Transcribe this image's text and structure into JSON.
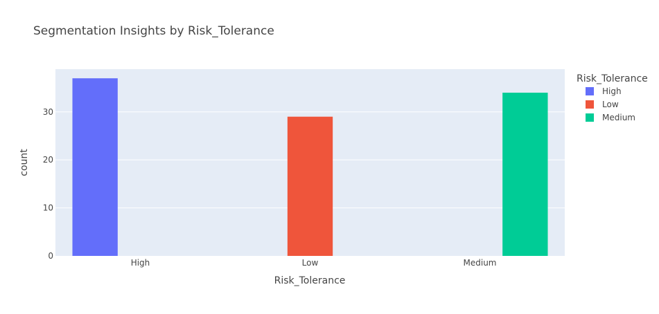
{
  "chart_data": {
    "type": "bar",
    "title": "Segmentation Insights by Risk_Tolerance",
    "xlabel": "Risk_Tolerance",
    "ylabel": "count",
    "categories": [
      "High",
      "Low",
      "Medium"
    ],
    "series": [
      {
        "name": "High",
        "color": "#636efa",
        "values": [
          37,
          null,
          null
        ]
      },
      {
        "name": "Low",
        "color": "#EF553B",
        "values": [
          null,
          29,
          null
        ]
      },
      {
        "name": "Medium",
        "color": "#00cc96",
        "values": [
          null,
          null,
          34
        ]
      }
    ],
    "ylim": [
      0,
      38.9
    ],
    "yticks": [
      0,
      10,
      20,
      30
    ],
    "grid": true,
    "legend": {
      "title": "Risk_Tolerance",
      "position": "right"
    }
  }
}
